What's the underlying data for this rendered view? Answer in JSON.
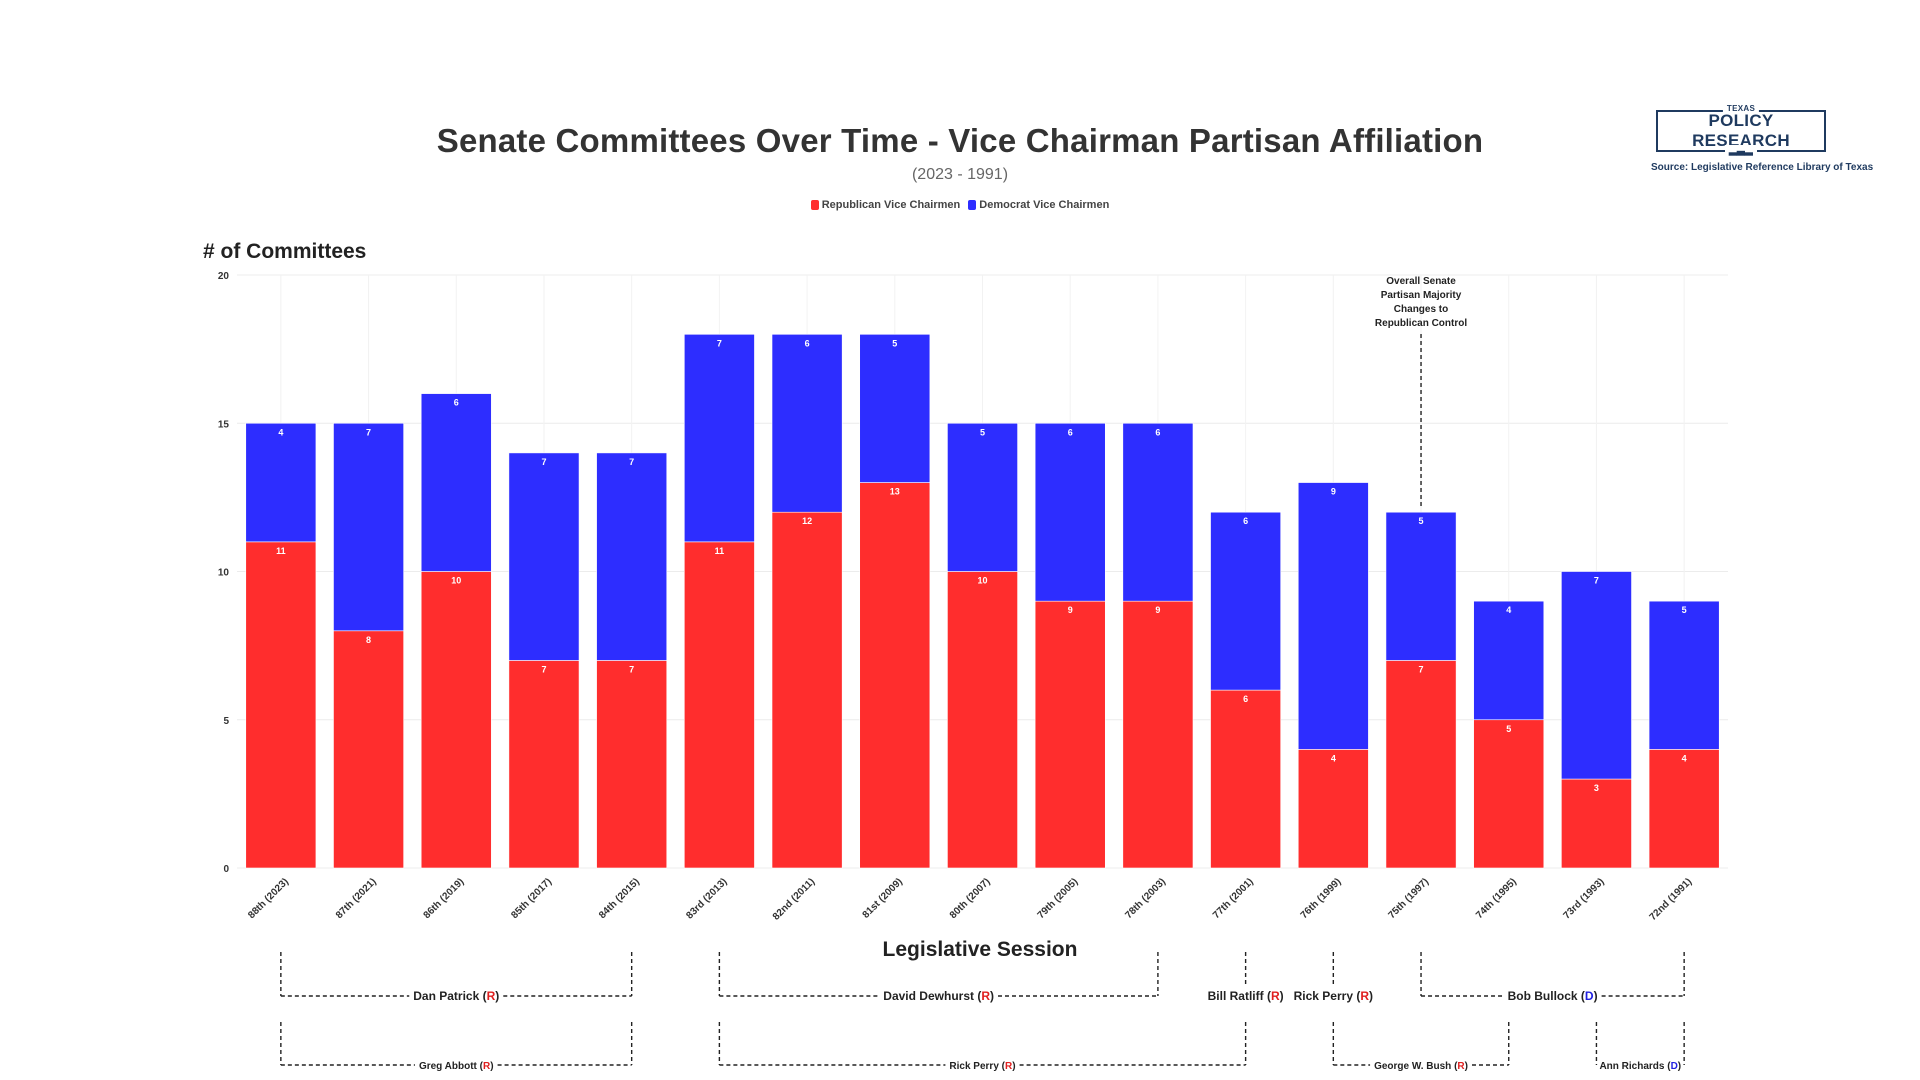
{
  "header": {
    "title": "Senate Committees Over Time - Vice Chairman Partisan Affiliation",
    "subtitle": "(2023 - 1991)"
  },
  "logo": {
    "top_text": "TEXAS",
    "main_text": "POLICY RESEARCH",
    "source": "Source: Legislative Reference Library of Texas"
  },
  "colors": {
    "republican": "#ff2d2d",
    "democrat": "#2d2dff",
    "party_r": "#e02020",
    "party_d": "#2020e0"
  },
  "chart_data": {
    "type": "bar",
    "stacked": true,
    "title": "Senate Committees Over Time - Vice Chairman Partisan Affiliation",
    "subtitle": "(2023 - 1991)",
    "xlabel": "Legislative Session",
    "ylabel": "# of Committees",
    "ylim": [
      0,
      20
    ],
    "yticks": [
      0,
      5,
      10,
      15,
      20
    ],
    "grid": true,
    "legend_position": "top-center",
    "categories": [
      "88th (2023)",
      "87th (2021)",
      "86th (2019)",
      "85th (2017)",
      "84th (2015)",
      "83rd (2013)",
      "82nd (2011)",
      "81st (2009)",
      "80th (2007)",
      "79th (2005)",
      "78th (2003)",
      "77th (2001)",
      "76th (1999)",
      "75th (1997)",
      "74th (1995)",
      "73rd (1993)",
      "72nd (1991)"
    ],
    "series": [
      {
        "name": "Republican Vice Chairmen",
        "color": "#ff2d2d",
        "values": [
          11,
          8,
          10,
          7,
          7,
          11,
          12,
          13,
          10,
          9,
          9,
          6,
          4,
          7,
          5,
          3,
          4
        ]
      },
      {
        "name": "Democrat Vice Chairmen",
        "color": "#2d2dff",
        "values": [
          4,
          7,
          6,
          7,
          7,
          7,
          6,
          5,
          5,
          6,
          6,
          6,
          9,
          5,
          4,
          7,
          5
        ]
      }
    ],
    "annotations": [
      {
        "text_lines": [
          "Overall Senate",
          "Partisan Majority",
          "Changes to",
          "Republican Control"
        ],
        "category": "75th (1997)"
      }
    ],
    "officeholder_rows": [
      {
        "row": "upper",
        "spans": [
          {
            "name": "Dan Patrick",
            "party": "R",
            "from": "88th (2023)",
            "to": "84th (2015)"
          },
          {
            "name": "David Dewhurst",
            "party": "R",
            "from": "83rd (2013)",
            "to": "78th (2003)"
          },
          {
            "name": "Bill Ratliff",
            "party": "R",
            "from": "77th (2001)",
            "to": "77th (2001)"
          },
          {
            "name": "Rick Perry",
            "party": "R",
            "from": "76th (1999)",
            "to": "76th (1999)"
          },
          {
            "name": "Bob Bullock",
            "party": "D",
            "from": "75th (1997)",
            "to": "72nd (1991)"
          }
        ]
      },
      {
        "row": "lower",
        "spans": [
          {
            "name": "Greg Abbott",
            "party": "R",
            "from": "88th (2023)",
            "to": "84th (2015)"
          },
          {
            "name": "Rick Perry",
            "party": "R",
            "from": "83rd (2013)",
            "to": "77th (2001)"
          },
          {
            "name": "George W. Bush",
            "party": "R",
            "from": "76th (1999)",
            "to": "74th (1995)"
          },
          {
            "name": "Ann Richards",
            "party": "D",
            "from": "73rd (1993)",
            "to": "72nd (1991)"
          }
        ]
      }
    ]
  }
}
